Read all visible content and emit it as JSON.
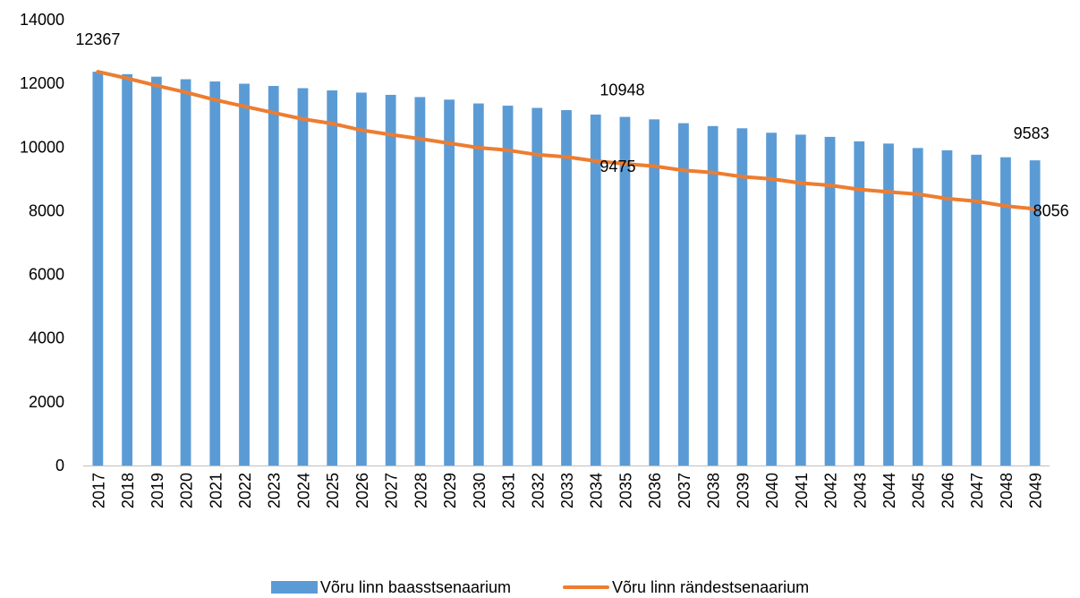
{
  "chart_data": {
    "type": "bar",
    "categories": [
      "2017",
      "2018",
      "2019",
      "2020",
      "2021",
      "2022",
      "2023",
      "2024",
      "2025",
      "2026",
      "2027",
      "2028",
      "2029",
      "2030",
      "2031",
      "2032",
      "2033",
      "2034",
      "2035",
      "2036",
      "2037",
      "2038",
      "2039",
      "2040",
      "2041",
      "2042",
      "2043",
      "2044",
      "2045",
      "2046",
      "2047",
      "2048",
      "2049"
    ],
    "series": [
      {
        "name": "Võru linn baasstsenaarium",
        "type": "bar",
        "color": "#5B9BD5",
        "values": [
          12367,
          12290,
          12210,
          12130,
          12060,
          11990,
          11920,
          11850,
          11780,
          11710,
          11640,
          11570,
          11490,
          11370,
          11300,
          11230,
          11160,
          11020,
          10948,
          10870,
          10750,
          10660,
          10590,
          10450,
          10390,
          10320,
          10180,
          10110,
          9970,
          9900,
          9760,
          9680,
          9583
        ]
      },
      {
        "name": "Võru linn rändestsenaarium",
        "type": "line",
        "color": "#ED7D31",
        "values": [
          12367,
          12160,
          11930,
          11720,
          11480,
          11280,
          11080,
          10880,
          10740,
          10530,
          10390,
          10260,
          10120,
          9980,
          9900,
          9760,
          9690,
          9560,
          9475,
          9400,
          9270,
          9200,
          9070,
          9000,
          8870,
          8800,
          8670,
          8590,
          8520,
          8380,
          8300,
          8150,
          8056
        ]
      }
    ],
    "data_labels": [
      {
        "series": 0,
        "index": 0,
        "text": "12367"
      },
      {
        "series": 0,
        "index": 18,
        "text": "10948"
      },
      {
        "series": 1,
        "index": 18,
        "text": "9475"
      },
      {
        "series": 0,
        "index": 32,
        "text": "9583"
      },
      {
        "series": 1,
        "index": 32,
        "text": "8056"
      }
    ],
    "yticks": [
      "0",
      "2000",
      "4000",
      "6000",
      "8000",
      "10000",
      "12000",
      "14000"
    ],
    "ylim": [
      0,
      14000
    ],
    "grid": false,
    "legend_position": "bottom"
  }
}
